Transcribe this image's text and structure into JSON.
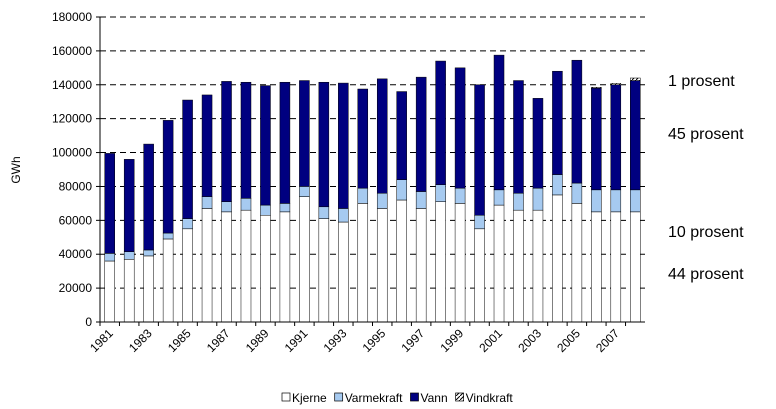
{
  "chart_data": {
    "type": "stacked_bar",
    "y_label": "GWh",
    "categories": [
      "1981",
      null,
      "1983",
      null,
      "1985",
      null,
      "1987",
      null,
      "1989",
      null,
      "1991",
      null,
      "1993",
      null,
      "1995",
      null,
      "1997",
      null,
      "1999",
      null,
      "2001",
      null,
      "2003",
      null,
      "2005",
      null,
      "2007",
      null
    ],
    "series": [
      {
        "name": "Kjerne",
        "color": "#ffffff",
        "values": [
          36000,
          37000,
          39000,
          49000,
          55000,
          67000,
          65000,
          66000,
          63000,
          65000,
          74000,
          61000,
          59000,
          70000,
          67000,
          72000,
          67000,
          71000,
          70000,
          55000,
          69000,
          66000,
          66000,
          75000,
          70000,
          65000,
          65000,
          65000
        ]
      },
      {
        "name": "Varmekraft",
        "color": "#a6caf0",
        "values": [
          4500,
          4500,
          3500,
          3500,
          6000,
          7000,
          6000,
          7000,
          6000,
          5000,
          6000,
          7000,
          8000,
          9000,
          9000,
          12000,
          10000,
          10000,
          9000,
          8000,
          9000,
          10000,
          13000,
          12000,
          12000,
          13000,
          13000,
          13000
        ]
      },
      {
        "name": "Vann",
        "color": "#000080",
        "values": [
          59000,
          54500,
          62500,
          66500,
          70000,
          60000,
          71000,
          68500,
          70500,
          71500,
          62500,
          73500,
          74000,
          58500,
          67500,
          52000,
          67500,
          73000,
          71000,
          77000,
          79500,
          66500,
          53000,
          61000,
          72500,
          60000,
          62000,
          64500
        ]
      },
      {
        "name": "Vindkraft",
        "color": "hatch",
        "values": [
          0,
          0,
          0,
          0,
          0,
          0,
          0,
          0,
          0,
          0,
          0,
          0,
          0,
          0,
          0,
          0,
          0,
          0,
          0,
          0,
          0,
          0,
          0,
          0,
          0,
          500,
          800,
          1500
        ]
      }
    ],
    "ylim": [
      0,
      180000
    ],
    "yticks": [
      0,
      20000,
      40000,
      60000,
      80000,
      100000,
      120000,
      140000,
      160000,
      180000
    ],
    "grid": true,
    "legend": "bottom",
    "annotations": [
      "1 prosent",
      "45 prosent",
      "10 prosent",
      "44 prosent"
    ]
  }
}
